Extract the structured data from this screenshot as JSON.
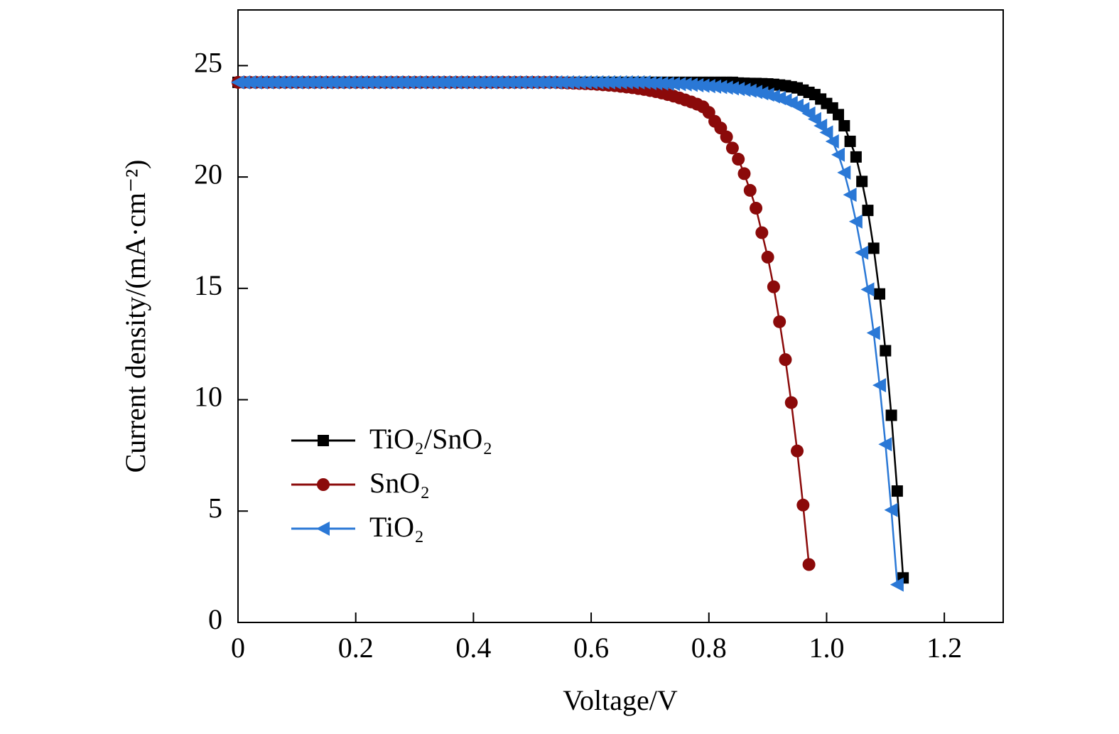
{
  "chart_data": {
    "type": "line",
    "xlabel": "Voltage/V",
    "ylabel": "Current density/(mA·cm⁻²)",
    "xlim": [
      0,
      1.3
    ],
    "ylim": [
      0,
      27.5
    ],
    "xticks": [
      0,
      0.2,
      0.4,
      0.6,
      0.8,
      {
        "value": 1.0,
        "label": "1.0"
      },
      1.2
    ],
    "yticks": [
      0,
      5,
      10,
      15,
      20,
      25
    ],
    "legend": "lower-left",
    "series": [
      {
        "name": "TiO₂/SnO₂",
        "color": "#000000",
        "marker": "square",
        "x": [
          0,
          0.01,
          0.02,
          0.03,
          0.04,
          0.05,
          0.06,
          0.07,
          0.08,
          0.09,
          0.1,
          0.11,
          0.12,
          0.13,
          0.14,
          0.15,
          0.16,
          0.17,
          0.18,
          0.19,
          0.2,
          0.21,
          0.22,
          0.23,
          0.24,
          0.25,
          0.26,
          0.27,
          0.28,
          0.29,
          0.3,
          0.31,
          0.32,
          0.33,
          0.34,
          0.35,
          0.36,
          0.37,
          0.38,
          0.39,
          0.4,
          0.41,
          0.42,
          0.43,
          0.44,
          0.45,
          0.46,
          0.47,
          0.48,
          0.49,
          0.5,
          0.51,
          0.52,
          0.53,
          0.54,
          0.55,
          0.56,
          0.57,
          0.58,
          0.59,
          0.6,
          0.61,
          0.62,
          0.63,
          0.64,
          0.65,
          0.66,
          0.67,
          0.68,
          0.69,
          0.7,
          0.71,
          0.72,
          0.73,
          0.74,
          0.75,
          0.76,
          0.77,
          0.78,
          0.79,
          0.8,
          0.81,
          0.82,
          0.83,
          0.84,
          0.85,
          0.86,
          0.87,
          0.88,
          0.89,
          0.9,
          0.91,
          0.92,
          0.93,
          0.94,
          0.95,
          0.96,
          0.97,
          0.98,
          0.99,
          1.0,
          1.01,
          1.02,
          1.03,
          1.04,
          1.05,
          1.06,
          1.07,
          1.08,
          1.09,
          1.1,
          1.11,
          1.12,
          1.13
        ],
        "values": [
          24.25,
          24.25,
          24.25,
          24.25,
          24.25,
          24.25,
          24.25,
          24.25,
          24.25,
          24.25,
          24.25,
          24.25,
          24.25,
          24.25,
          24.25,
          24.25,
          24.25,
          24.25,
          24.25,
          24.25,
          24.25,
          24.25,
          24.25,
          24.25,
          24.25,
          24.25,
          24.25,
          24.25,
          24.25,
          24.25,
          24.25,
          24.25,
          24.25,
          24.25,
          24.25,
          24.25,
          24.25,
          24.25,
          24.25,
          24.25,
          24.25,
          24.25,
          24.25,
          24.25,
          24.25,
          24.25,
          24.25,
          24.25,
          24.25,
          24.25,
          24.25,
          24.25,
          24.25,
          24.25,
          24.25,
          24.25,
          24.25,
          24.25,
          24.25,
          24.25,
          24.25,
          24.25,
          24.25,
          24.25,
          24.25,
          24.25,
          24.25,
          24.25,
          24.25,
          24.25,
          24.25,
          24.25,
          24.25,
          24.25,
          24.25,
          24.25,
          24.25,
          24.25,
          24.25,
          24.25,
          24.25,
          24.25,
          24.25,
          24.25,
          24.25,
          24.22,
          24.21,
          24.2,
          24.2,
          24.19,
          24.18,
          24.16,
          24.13,
          24.1,
          24.05,
          24.0,
          23.9,
          23.8,
          23.7,
          23.5,
          23.3,
          23.1,
          22.8,
          22.3,
          21.6,
          20.9,
          19.8,
          18.5,
          16.8,
          14.75,
          12.2,
          9.3,
          5.9,
          2.0
        ]
      },
      {
        "name": "SnO₂",
        "color": "#8b0a0a",
        "marker": "circle",
        "x": [
          0,
          0.01,
          0.02,
          0.03,
          0.04,
          0.05,
          0.06,
          0.07,
          0.08,
          0.09,
          0.1,
          0.11,
          0.12,
          0.13,
          0.14,
          0.15,
          0.16,
          0.17,
          0.18,
          0.19,
          0.2,
          0.21,
          0.22,
          0.23,
          0.24,
          0.25,
          0.26,
          0.27,
          0.28,
          0.29,
          0.3,
          0.31,
          0.32,
          0.33,
          0.34,
          0.35,
          0.36,
          0.37,
          0.38,
          0.39,
          0.4,
          0.41,
          0.42,
          0.43,
          0.44,
          0.45,
          0.46,
          0.47,
          0.48,
          0.49,
          0.5,
          0.51,
          0.52,
          0.53,
          0.54,
          0.55,
          0.56,
          0.57,
          0.58,
          0.59,
          0.6,
          0.61,
          0.62,
          0.63,
          0.64,
          0.65,
          0.66,
          0.67,
          0.68,
          0.69,
          0.7,
          0.71,
          0.72,
          0.73,
          0.74,
          0.75,
          0.76,
          0.77,
          0.78,
          0.79,
          0.8,
          0.81,
          0.82,
          0.83,
          0.84,
          0.85,
          0.86,
          0.87,
          0.88,
          0.89,
          0.9,
          0.91,
          0.92,
          0.93,
          0.94,
          0.95,
          0.96,
          0.97
        ],
        "values": [
          24.25,
          24.25,
          24.25,
          24.25,
          24.25,
          24.25,
          24.25,
          24.25,
          24.25,
          24.25,
          24.25,
          24.25,
          24.25,
          24.25,
          24.25,
          24.25,
          24.25,
          24.25,
          24.25,
          24.25,
          24.25,
          24.25,
          24.25,
          24.25,
          24.25,
          24.25,
          24.25,
          24.25,
          24.25,
          24.25,
          24.25,
          24.25,
          24.25,
          24.25,
          24.25,
          24.25,
          24.25,
          24.25,
          24.25,
          24.25,
          24.25,
          24.25,
          24.25,
          24.25,
          24.25,
          24.25,
          24.25,
          24.25,
          24.25,
          24.25,
          24.25,
          24.25,
          24.25,
          24.25,
          24.25,
          24.23,
          24.22,
          24.21,
          24.2,
          24.19,
          24.18,
          24.16,
          24.14,
          24.12,
          24.1,
          24.07,
          24.04,
          24.01,
          23.97,
          23.93,
          23.88,
          23.83,
          23.77,
          23.7,
          23.63,
          23.55,
          23.46,
          23.37,
          23.27,
          23.15,
          22.9,
          22.5,
          22.2,
          21.8,
          21.3,
          20.8,
          20.15,
          19.4,
          18.6,
          17.5,
          16.4,
          15.07,
          13.5,
          11.8,
          9.87,
          7.7,
          5.27,
          2.6
        ]
      },
      {
        "name": "TiO₂",
        "color": "#2a78d6",
        "marker": "triangle-left",
        "x": [
          0,
          0.01,
          0.02,
          0.03,
          0.04,
          0.05,
          0.06,
          0.07,
          0.08,
          0.09,
          0.1,
          0.11,
          0.12,
          0.13,
          0.14,
          0.15,
          0.16,
          0.17,
          0.18,
          0.19,
          0.2,
          0.21,
          0.22,
          0.23,
          0.24,
          0.25,
          0.26,
          0.27,
          0.28,
          0.29,
          0.3,
          0.31,
          0.32,
          0.33,
          0.34,
          0.35,
          0.36,
          0.37,
          0.38,
          0.39,
          0.4,
          0.41,
          0.42,
          0.43,
          0.44,
          0.45,
          0.46,
          0.47,
          0.48,
          0.49,
          0.5,
          0.51,
          0.52,
          0.53,
          0.54,
          0.55,
          0.56,
          0.57,
          0.58,
          0.59,
          0.6,
          0.61,
          0.62,
          0.63,
          0.64,
          0.65,
          0.66,
          0.67,
          0.68,
          0.69,
          0.7,
          0.71,
          0.72,
          0.73,
          0.74,
          0.75,
          0.76,
          0.77,
          0.78,
          0.79,
          0.8,
          0.81,
          0.82,
          0.83,
          0.84,
          0.85,
          0.86,
          0.87,
          0.88,
          0.89,
          0.9,
          0.91,
          0.92,
          0.93,
          0.94,
          0.95,
          0.96,
          0.97,
          0.98,
          0.99,
          1.0,
          1.01,
          1.02,
          1.03,
          1.04,
          1.05,
          1.06,
          1.07,
          1.08,
          1.09,
          1.1,
          1.11,
          1.12
        ],
        "values": [
          24.25,
          24.25,
          24.25,
          24.25,
          24.25,
          24.25,
          24.25,
          24.25,
          24.25,
          24.25,
          24.25,
          24.25,
          24.25,
          24.25,
          24.25,
          24.25,
          24.25,
          24.25,
          24.25,
          24.25,
          24.25,
          24.25,
          24.25,
          24.25,
          24.25,
          24.25,
          24.25,
          24.25,
          24.25,
          24.25,
          24.25,
          24.25,
          24.25,
          24.25,
          24.25,
          24.25,
          24.25,
          24.25,
          24.25,
          24.25,
          24.25,
          24.25,
          24.25,
          24.25,
          24.25,
          24.25,
          24.25,
          24.25,
          24.25,
          24.25,
          24.25,
          24.25,
          24.25,
          24.25,
          24.25,
          24.25,
          24.25,
          24.25,
          24.25,
          24.25,
          24.25,
          24.25,
          24.25,
          24.25,
          24.25,
          24.25,
          24.25,
          24.25,
          24.25,
          24.25,
          24.22,
          24.21,
          24.2,
          24.19,
          24.18,
          24.17,
          24.16,
          24.14,
          24.12,
          24.1,
          24.08,
          24.06,
          24.04,
          24.01,
          23.98,
          23.95,
          23.91,
          23.87,
          23.82,
          23.76,
          23.7,
          23.62,
          23.54,
          23.44,
          23.33,
          23.2,
          23.05,
          22.85,
          22.6,
          22.3,
          22.0,
          21.6,
          21.0,
          20.2,
          19.2,
          18.0,
          16.6,
          14.95,
          13.0,
          10.65,
          8.0,
          5.05,
          1.7
        ]
      }
    ]
  }
}
